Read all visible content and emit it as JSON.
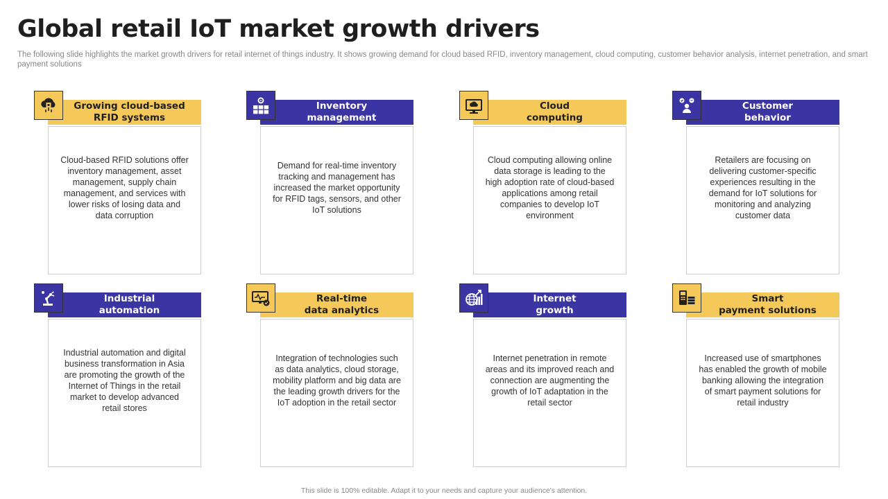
{
  "title": "Global retail IoT market growth drivers",
  "subtitle": "The following slide highlights the market growth drivers for retail internet of things industry. It shows growing demand for cloud based RFID, inventory management, cloud computing, customer behavior analysis, internet penetration, and smart payment solutions",
  "footer": "This slide is 100% editable. Adapt it to your needs and capture your audience's attention.",
  "colors": {
    "yellow": "#f5c85a",
    "blue": "#3a35a3"
  },
  "cards": [
    {
      "title": "Growing cloud-based\nRFID systems",
      "body": "Cloud-based RFID solutions offer inventory management, asset management, supply chain management, and services with lower risks of losing data and data corruption",
      "icon": "cloud-chip-icon"
    },
    {
      "title": "Inventory\nmanagement",
      "body": "Demand for real-time inventory tracking and management has increased the market opportunity for RFID tags, sensors, and other IoT solutions",
      "icon": "boxes-gear-icon"
    },
    {
      "title": "Cloud\ncomputing",
      "body": "Cloud computing allowing online data storage is leading to the high adoption rate of cloud-based applications among retail companies to develop IoT environment",
      "icon": "cloud-monitor-icon"
    },
    {
      "title": "Customer\nbehavior",
      "body": "Retailers are focusing on delivering customer-specific experiences resulting in the demand for IoT solutions for monitoring and analyzing customer data",
      "icon": "customer-icon"
    },
    {
      "title": "Industrial\nautomation",
      "body": "Industrial automation and digital business transformation in Asia are promoting the growth of the Internet of Things in the retail market to develop advanced retail stores",
      "icon": "robot-arm-icon"
    },
    {
      "title": "Real-time\ndata analytics",
      "body": "Integration of technologies such as data analytics, cloud storage, mobility platform and big data are the leading growth drivers for the IoT adoption in the retail sector",
      "icon": "analytics-monitor-icon"
    },
    {
      "title": "Internet\ngrowth",
      "body": "Internet penetration in remote areas and its improved reach and connection are augmenting the growth of IoT adaptation in the retail sector",
      "icon": "globe-growth-icon"
    },
    {
      "title": "Smart\npayment solutions",
      "body": "Increased use of smartphones has enabled the growth of mobile banking allowing the integration of smart payment solutions for retail industry",
      "icon": "payment-terminal-icon"
    }
  ]
}
